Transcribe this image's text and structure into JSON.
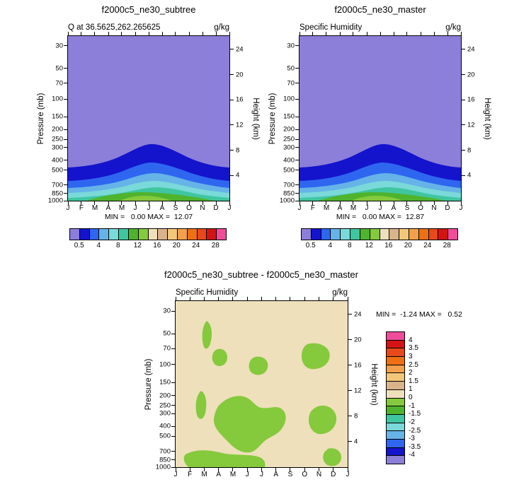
{
  "figure": {
    "background": "#ffffff"
  },
  "axes": {
    "pressure_label": "Pressure (mb)",
    "height_label": "Height (km)",
    "pressure_ticks": [
      30,
      50,
      70,
      100,
      150,
      200,
      250,
      300,
      400,
      500,
      700,
      850,
      1000
    ],
    "height_ticks": [
      24,
      20,
      16,
      12,
      8,
      4
    ],
    "months": [
      "J",
      "F",
      "M",
      "A",
      "M",
      "J",
      "J",
      "A",
      "S",
      "O",
      "N",
      "D",
      "J"
    ]
  },
  "panels": [
    {
      "title": "f2000c5_ne30_subtree",
      "subtitle_left": "Q at 36.5625,262.265625",
      "subtitle_right": "g/kg",
      "minmax": "MIN =   0.00 MAX =  12.07"
    },
    {
      "title": "f2000c5_ne30_master",
      "subtitle_left": "Specific Humidity",
      "subtitle_right": "g/kg",
      "minmax": "MIN =   0.00 MAX =  12.87"
    },
    {
      "title": "f2000c5_ne30_subtree - f2000c5_ne30_master",
      "subtitle_left": "Specific Humidity",
      "subtitle_right": "g/kg",
      "minmax": "MIN =  -1.24 MAX =   0.52"
    }
  ],
  "colorbar_humidity": {
    "labels": [
      "0.5",
      "4",
      "8",
      "12",
      "16",
      "20",
      "24",
      "28"
    ],
    "colors": [
      "#8C7FD9",
      "#1414CC",
      "#2E66F0",
      "#66B3E8",
      "#7AD9D9",
      "#3FC6A0",
      "#4FB32E",
      "#85C93D",
      "#EFE0BC",
      "#D9B38C",
      "#F2C779",
      "#F2A04B",
      "#ED7014",
      "#E8491A",
      "#D41414",
      "#F04C99"
    ]
  },
  "colorbar_diff": {
    "labels": [
      "4",
      "3.5",
      "3",
      "2.5",
      "2",
      "1.5",
      "1",
      "0",
      "-1",
      "-1.5",
      "-2",
      "-2.5",
      "-3",
      "-3.5",
      "-4"
    ],
    "colors": [
      "#F04C99",
      "#D41414",
      "#E8491A",
      "#ED7014",
      "#F2A04B",
      "#F2C779",
      "#D9B38C",
      "#EFE0BC",
      "#85C93D",
      "#4FB32E",
      "#3FC6A0",
      "#7AD9D9",
      "#66B3E8",
      "#2E66F0",
      "#1414CC",
      "#8C7FD9"
    ]
  },
  "chart_data": [
    {
      "type": "contour",
      "title": "f2000c5_ne30_subtree",
      "subtitle": "Q at 36.5625,262.265625",
      "units": "g/kg",
      "x_categories": [
        "J",
        "F",
        "M",
        "A",
        "M",
        "J",
        "J",
        "A",
        "S",
        "O",
        "N",
        "D",
        "J"
      ],
      "y_left": {
        "label": "Pressure (mb)",
        "ticks": [
          30,
          50,
          70,
          100,
          150,
          200,
          250,
          300,
          400,
          500,
          700,
          850,
          1000
        ],
        "scale": "log, inverted (1000 mb at bottom)"
      },
      "y_right": {
        "label": "Height (km)",
        "ticks": [
          24,
          20,
          16,
          12,
          8,
          4
        ]
      },
      "contour_levels": [
        0.5,
        2,
        4,
        6,
        8,
        10,
        12,
        14,
        16,
        18,
        20,
        22,
        24,
        26,
        28
      ],
      "min": 0.0,
      "max": 12.07,
      "legend_position": "bottom",
      "grid": false,
      "summary": "Annual cycle of specific humidity vs pressure; values below 0.5 g/kg (purple) above about 300 mb, increasing toward the surface with a maximum of about 12 g/kg near 850-1000 mb during May-September."
    },
    {
      "type": "contour",
      "title": "f2000c5_ne30_master",
      "subtitle": "Specific Humidity",
      "units": "g/kg",
      "x_categories": [
        "J",
        "F",
        "M",
        "A",
        "M",
        "J",
        "J",
        "A",
        "S",
        "O",
        "N",
        "D",
        "J"
      ],
      "y_left": {
        "label": "Pressure (mb)",
        "ticks": [
          30,
          50,
          70,
          100,
          150,
          200,
          250,
          300,
          400,
          500,
          700,
          850,
          1000
        ],
        "scale": "log, inverted (1000 mb at bottom)"
      },
      "y_right": {
        "label": "Height (km)",
        "ticks": [
          24,
          20,
          16,
          12,
          8,
          4
        ]
      },
      "contour_levels": [
        0.5,
        2,
        4,
        6,
        8,
        10,
        12,
        14,
        16,
        18,
        20,
        22,
        24,
        26,
        28
      ],
      "min": 0.0,
      "max": 12.87,
      "legend_position": "bottom",
      "grid": false,
      "summary": "Same field for the master run; nearly identical pattern with surface maximum of about 12.9 g/kg in May-September."
    },
    {
      "type": "contour",
      "title": "f2000c5_ne30_subtree - f2000c5_ne30_master",
      "subtitle": "Specific Humidity",
      "units": "g/kg",
      "x_categories": [
        "J",
        "F",
        "M",
        "A",
        "M",
        "J",
        "J",
        "A",
        "S",
        "O",
        "N",
        "D",
        "J"
      ],
      "y_left": {
        "label": "Pressure (mb)",
        "ticks": [
          30,
          50,
          70,
          100,
          150,
          200,
          250,
          300,
          400,
          500,
          700,
          850,
          1000
        ],
        "scale": "log, inverted (1000 mb at bottom)"
      },
      "y_right": {
        "label": "Height (km)",
        "ticks": [
          24,
          20,
          16,
          12,
          8,
          4
        ]
      },
      "contour_levels": [
        -4,
        -3.5,
        -3,
        -2.5,
        -2,
        -1.5,
        -1,
        0,
        1,
        1.5,
        2,
        2.5,
        3,
        3.5,
        4
      ],
      "min": -1.24,
      "max": 0.52,
      "legend_position": "right",
      "grid": false,
      "summary": "Difference field mostly between 0 and 1 g/kg (tan background) with scattered negative anomalies between -1 and 0 g/kg (green patches) through the troposphere."
    }
  ]
}
